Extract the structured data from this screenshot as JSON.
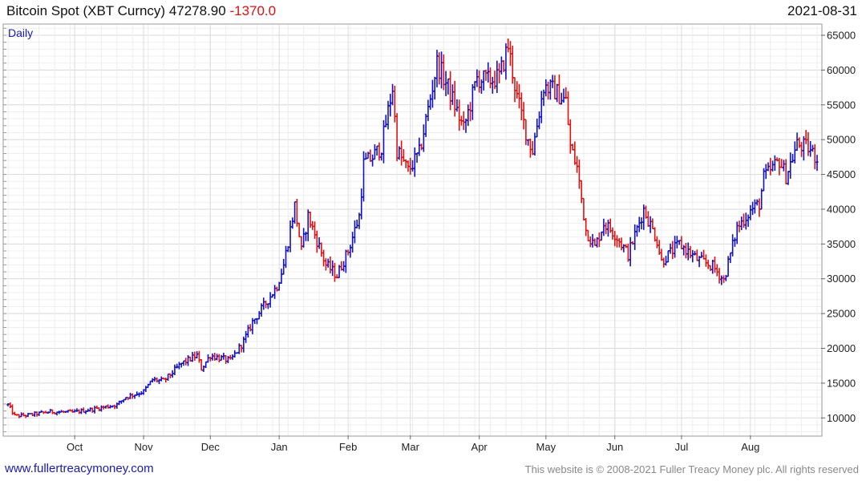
{
  "header": {
    "title": "Bitcoin Spot (XBT Curncy) 47278.90",
    "change": "-1370.0",
    "date": "2021-08-31"
  },
  "footer": {
    "left": "www.fullertreacymoney.com",
    "right": "This website is © 2008-2021 Fuller Treacy Money plc. All rights reserved"
  },
  "colors": {
    "up": "#1010c8",
    "down": "#e01010",
    "grid": "#e2e2e2",
    "frame": "#999999"
  },
  "chart_data": {
    "type": "ohlc-bar",
    "period_label": "Daily",
    "x_range": [
      "2020-09-01",
      "2021-08-31"
    ],
    "ylim": [
      7500,
      66500
    ],
    "y_ticks": [
      10000,
      15000,
      20000,
      25000,
      30000,
      35000,
      40000,
      45000,
      50000,
      55000,
      60000,
      65000
    ],
    "y_tick_labels": [
      "10000",
      "15000",
      "20000",
      "25000",
      "30000",
      "35000",
      "40000",
      "45000",
      "50000",
      "55000",
      "60000",
      "65000"
    ],
    "month_ticks": [
      {
        "date": "2020-10-01",
        "label": "Oct"
      },
      {
        "date": "2020-11-01",
        "label": "Nov"
      },
      {
        "date": "2020-12-01",
        "label": "Dec"
      },
      {
        "date": "2021-01-01",
        "label": "Jan"
      },
      {
        "date": "2021-02-01",
        "label": "Feb"
      },
      {
        "date": "2021-03-01",
        "label": "Mar"
      },
      {
        "date": "2021-04-01",
        "label": "Apr"
      },
      {
        "date": "2021-05-01",
        "label": "May"
      },
      {
        "date": "2021-06-01",
        "label": "Jun"
      },
      {
        "date": "2021-07-01",
        "label": "Jul"
      },
      {
        "date": "2021-08-01",
        "label": "Aug"
      }
    ],
    "grid": true,
    "close_path_approx": [
      [
        "2020-09-01",
        11900
      ],
      [
        "2020-09-04",
        10300
      ],
      [
        "2020-09-10",
        10400
      ],
      [
        "2020-09-20",
        10900
      ],
      [
        "2020-09-30",
        10800
      ],
      [
        "2020-10-10",
        11300
      ],
      [
        "2020-10-20",
        11900
      ],
      [
        "2020-10-24",
        13000
      ],
      [
        "2020-11-01",
        13800
      ],
      [
        "2020-11-05",
        15500
      ],
      [
        "2020-11-10",
        15300
      ],
      [
        "2020-11-18",
        17800
      ],
      [
        "2020-11-25",
        19000
      ],
      [
        "2020-11-27",
        17100
      ],
      [
        "2020-12-01",
        19000
      ],
      [
        "2020-12-10",
        18200
      ],
      [
        "2020-12-16",
        21000
      ],
      [
        "2020-12-20",
        23800
      ],
      [
        "2020-12-26",
        26500
      ],
      [
        "2020-12-31",
        29000
      ],
      [
        "2021-01-03",
        32000
      ],
      [
        "2021-01-08",
        40500
      ],
      [
        "2021-01-11",
        34000
      ],
      [
        "2021-01-14",
        39000
      ],
      [
        "2021-01-22",
        32000
      ],
      [
        "2021-01-27",
        30500
      ],
      [
        "2021-02-01",
        34000
      ],
      [
        "2021-02-06",
        39000
      ],
      [
        "2021-02-08",
        46500
      ],
      [
        "2021-02-12",
        47500
      ],
      [
        "2021-02-16",
        49000
      ],
      [
        "2021-02-21",
        57500
      ],
      [
        "2021-02-23",
        48500
      ],
      [
        "2021-02-28",
        45500
      ],
      [
        "2021-03-05",
        48000
      ],
      [
        "2021-03-10",
        56000
      ],
      [
        "2021-03-13",
        61000
      ],
      [
        "2021-03-18",
        57500
      ],
      [
        "2021-03-25",
        51500
      ],
      [
        "2021-03-31",
        58800
      ],
      [
        "2021-04-05",
        58500
      ],
      [
        "2021-04-10",
        59000
      ],
      [
        "2021-04-14",
        63500
      ],
      [
        "2021-04-18",
        56000
      ],
      [
        "2021-04-23",
        50000
      ],
      [
        "2021-04-25",
        48500
      ],
      [
        "2021-04-30",
        57700
      ],
      [
        "2021-05-05",
        57000
      ],
      [
        "2021-05-10",
        55500
      ],
      [
        "2021-05-12",
        49000
      ],
      [
        "2021-05-15",
        46000
      ],
      [
        "2021-05-19",
        37000
      ],
      [
        "2021-05-23",
        34500
      ],
      [
        "2021-05-27",
        38000
      ],
      [
        "2021-06-01",
        36500
      ],
      [
        "2021-06-07",
        33500
      ],
      [
        "2021-06-14",
        40000
      ],
      [
        "2021-06-20",
        35500
      ],
      [
        "2021-06-22",
        32500
      ],
      [
        "2021-06-30",
        35000
      ],
      [
        "2021-07-08",
        32800
      ],
      [
        "2021-07-15",
        31800
      ],
      [
        "2021-07-20",
        29800
      ],
      [
        "2021-07-26",
        37300
      ],
      [
        "2021-08-01",
        39800
      ],
      [
        "2021-08-05",
        40800
      ],
      [
        "2021-08-07",
        44500
      ],
      [
        "2021-08-14",
        47000
      ],
      [
        "2021-08-17",
        44800
      ],
      [
        "2021-08-22",
        49300
      ],
      [
        "2021-08-27",
        48800
      ],
      [
        "2021-08-31",
        47278.9
      ]
    ]
  }
}
